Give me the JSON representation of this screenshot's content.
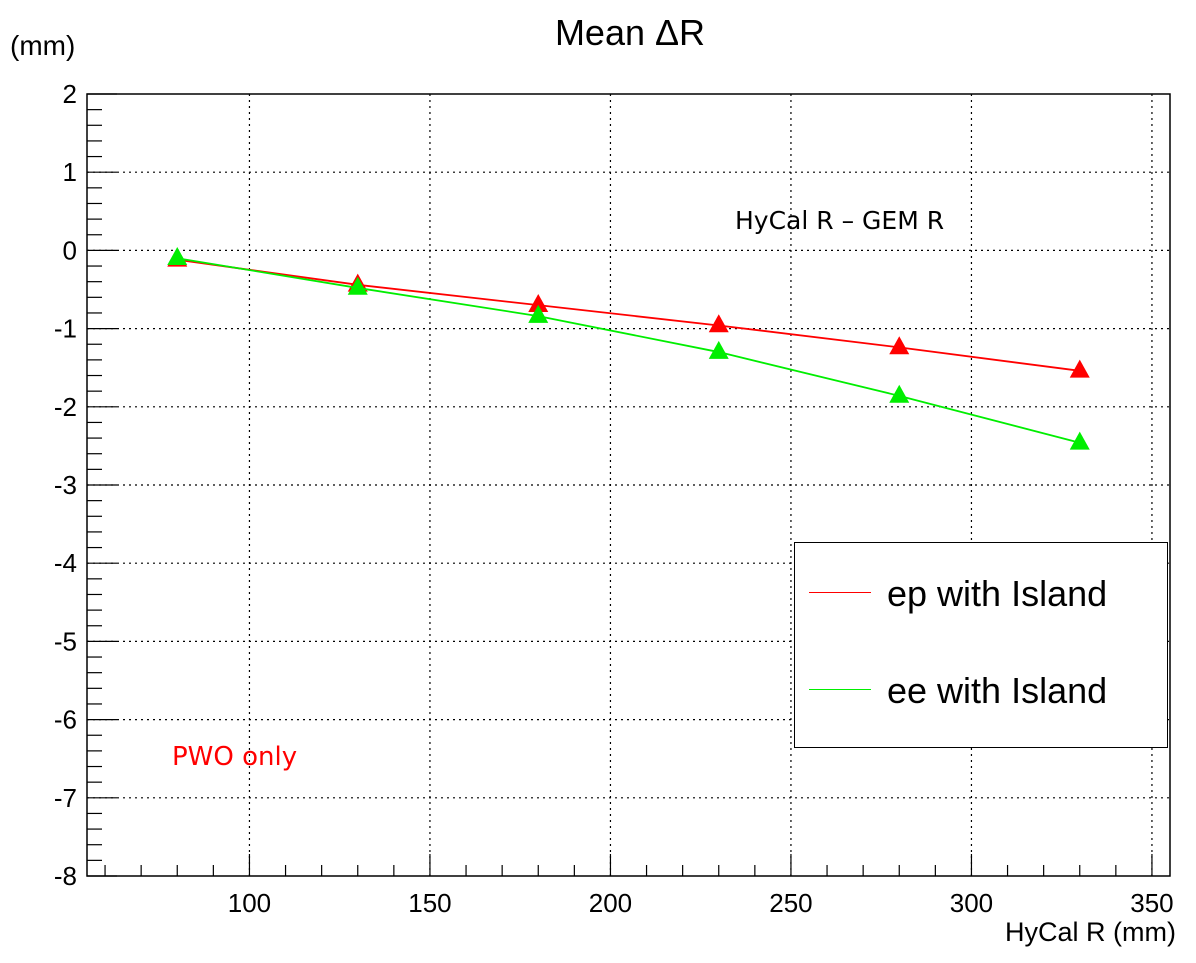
{
  "chart_data": {
    "type": "line",
    "title": "Mean ΔR",
    "ylabel": "(mm)",
    "xlabel": "HyCal R (mm)",
    "xlim": [
      55,
      355
    ],
    "ylim": [
      -8,
      2
    ],
    "grid": true,
    "xticks": [
      100,
      150,
      200,
      250,
      300,
      350
    ],
    "yticks": [
      2,
      1,
      0,
      -1,
      -2,
      -3,
      -4,
      -5,
      -6,
      -7,
      -8
    ],
    "legend_position": "right",
    "series": [
      {
        "name": "ep with Island",
        "color": "#ff0000",
        "marker": "triangle",
        "x": [
          80,
          130,
          180,
          230,
          280,
          330
        ],
        "y": [
          -0.12,
          -0.44,
          -0.7,
          -0.96,
          -1.24,
          -1.54
        ]
      },
      {
        "name": "ee with Island",
        "color": "#00ee00",
        "marker": "triangle",
        "x": [
          80,
          130,
          180,
          230,
          280,
          330
        ],
        "y": [
          -0.1,
          -0.48,
          -0.84,
          -1.3,
          -1.86,
          -2.46
        ]
      }
    ],
    "annotations": [
      {
        "text": "HyCal R – GEM R",
        "color": "#000000"
      },
      {
        "text": "PWO only",
        "color": "#ff0000"
      }
    ]
  }
}
